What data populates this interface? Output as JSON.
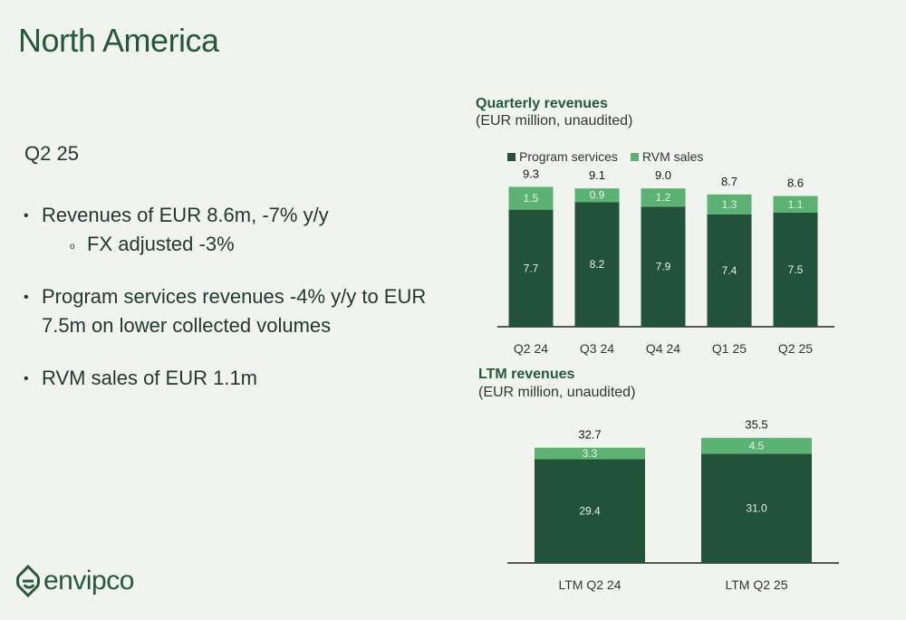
{
  "page": {
    "title": "North America",
    "section_title": "Q2 25",
    "bullets": [
      {
        "text": "Revenues of EUR 8.6m, -7% y/y",
        "sub": "FX adjusted -3%"
      },
      {
        "text": "Program services revenues -4% y/y to EUR 7.5m on lower collected volumes"
      },
      {
        "text": "RVM sales of EUR 1.1m"
      }
    ],
    "logo_text": "envipco"
  },
  "colors": {
    "program_services": "#23523a",
    "rvm_sales": "#5cb273",
    "title_green": "#245a36"
  },
  "legend": {
    "program_services": "Program services",
    "rvm_sales": "RVM sales"
  },
  "chart_data": [
    {
      "type": "bar",
      "stacked": true,
      "title": "Quarterly revenues",
      "subtitle": "(EUR million, unaudited)",
      "categories": [
        "Q2 24",
        "Q3 24",
        "Q4 24",
        "Q1 25",
        "Q2 25"
      ],
      "series": [
        {
          "name": "Program services",
          "values": [
            7.7,
            8.2,
            7.9,
            7.4,
            7.5
          ]
        },
        {
          "name": "RVM sales",
          "values": [
            1.5,
            0.9,
            1.2,
            1.3,
            1.1
          ]
        }
      ],
      "totals": [
        "9.3",
        "9.1",
        "9.0",
        "8.7",
        "8.6"
      ],
      "ylim": [
        0,
        10
      ]
    },
    {
      "type": "bar",
      "stacked": true,
      "title": "LTM revenues",
      "subtitle": "(EUR million, unaudited)",
      "categories": [
        "LTM Q2 24",
        "LTM Q2 25"
      ],
      "series": [
        {
          "name": "Program services",
          "values": [
            29.4,
            31.0
          ]
        },
        {
          "name": "RVM sales",
          "values": [
            3.3,
            4.5
          ]
        }
      ],
      "totals": [
        "32.7",
        "35.5"
      ],
      "ylim": [
        0,
        38
      ]
    }
  ]
}
